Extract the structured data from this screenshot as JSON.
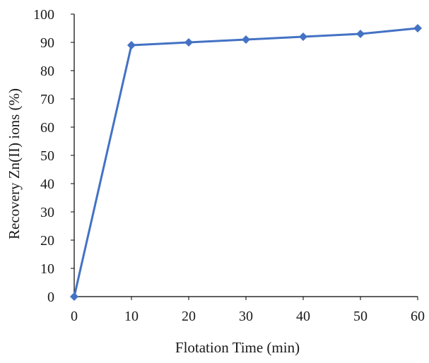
{
  "chart_data": {
    "type": "line",
    "title": "",
    "xlabel": "Flotation Time  (min)",
    "ylabel": "Recovery Zn(II)  ions (%)",
    "x": [
      0,
      10,
      20,
      30,
      40,
      50,
      60
    ],
    "series": [
      {
        "values": [
          0,
          89,
          90,
          91,
          92,
          93,
          95
        ]
      }
    ],
    "xticks": [
      "0",
      "10",
      "20",
      "30",
      "40",
      "50",
      "60"
    ],
    "yticks": [
      "0",
      "10",
      "20",
      "30",
      "40",
      "50",
      "60",
      "70",
      "80",
      "90",
      "100"
    ],
    "xlim": [
      0,
      60
    ],
    "ylim": [
      0,
      100
    ],
    "grid": false,
    "legend": "none",
    "marker": "diamond",
    "series_color": "#4472C4",
    "axis_color": "#000000"
  }
}
